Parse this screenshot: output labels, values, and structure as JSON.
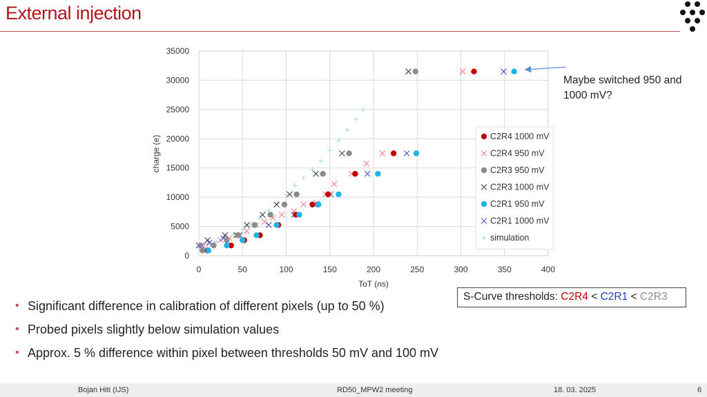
{
  "slide": {
    "title": "External injection",
    "annotation": "Maybe switched 950 and 1000 mV?",
    "scurve": {
      "prefix": "S-Curve thresholds: ",
      "c2r4": "C2R4",
      "lt1": " < ",
      "c2r1": "C2R1",
      "lt2": " < ",
      "c2r3": "C2R3"
    },
    "bullets": [
      "Significant difference in calibration of different pixels (up to 50 %)",
      "Probed pixels slightly below simulation values",
      "Approx. 5 % difference within pixel between thresholds 50 mV and 100 mV"
    ],
    "footer": {
      "author": "Bojan Hiti (IJS)",
      "meeting": "RD50_MPW2 meeting",
      "date": "18. 03. 2025",
      "page": "6"
    }
  },
  "colors": {
    "title": "#b3141b",
    "c2r4_1000": "#c00000",
    "c2r4_950": "#f08080",
    "c2r3_950": "#8c8c8c",
    "c2r3_1000": "#404040",
    "c2r1_950": "#1eb4e6",
    "c2r1_1000": "#5050c8",
    "simulation": "#9ed8ea"
  },
  "chart_data": {
    "type": "scatter",
    "xlabel": "ToT (ns)",
    "ylabel": "charge (e)",
    "xlim": [
      0,
      400
    ],
    "ylim": [
      0,
      35000
    ],
    "xticks": [
      0,
      50,
      100,
      150,
      200,
      250,
      300,
      350,
      400
    ],
    "yticks": [
      0,
      5000,
      10000,
      15000,
      20000,
      25000,
      30000,
      35000
    ],
    "grid": true,
    "legend_position": "right",
    "series": [
      {
        "name": "C2R4 1000 mV",
        "marker": "dot",
        "color": "#c00000",
        "points": [
          [
            10,
            900
          ],
          [
            37,
            1750
          ],
          [
            52,
            2650
          ],
          [
            70,
            3500
          ],
          [
            91,
            5250
          ],
          [
            111,
            7000
          ],
          [
            130,
            8750
          ],
          [
            148,
            10500
          ],
          [
            179,
            14000
          ],
          [
            223,
            17500
          ],
          [
            315,
            31500
          ]
        ]
      },
      {
        "name": "C2R4 950 mV",
        "marker": "x",
        "color": "#f08080",
        "points": [
          [
            5,
            1750
          ],
          [
            15,
            2000
          ],
          [
            25,
            2650
          ],
          [
            35,
            3000
          ],
          [
            45,
            3500
          ],
          [
            55,
            4200
          ],
          [
            65,
            5250
          ],
          [
            75,
            5800
          ],
          [
            85,
            6500
          ],
          [
            95,
            7000
          ],
          [
            109,
            7600
          ],
          [
            120,
            8750
          ],
          [
            135,
            9000
          ],
          [
            145,
            10500
          ],
          [
            155,
            12250
          ],
          [
            175,
            14000
          ],
          [
            192,
            15750
          ],
          [
            210,
            17500
          ],
          [
            302,
            31500
          ]
        ]
      },
      {
        "name": "C2R3 950 mV",
        "marker": "dot",
        "color": "#8c8c8c",
        "points": [
          [
            4,
            900
          ],
          [
            17,
            1750
          ],
          [
            32,
            2650
          ],
          [
            45,
            3500
          ],
          [
            64,
            5250
          ],
          [
            82,
            7000
          ],
          [
            98,
            8750
          ],
          [
            112,
            10500
          ],
          [
            142,
            14000
          ],
          [
            172,
            17500
          ],
          [
            248,
            31500
          ]
        ]
      },
      {
        "name": "C2R3 1000 mV",
        "marker": "x",
        "color": "#404040",
        "points": [
          [
            0,
            1750
          ],
          [
            10,
            2650
          ],
          [
            30,
            3500
          ],
          [
            43,
            3500
          ],
          [
            55,
            5250
          ],
          [
            73,
            7000
          ],
          [
            89,
            8750
          ],
          [
            104,
            10500
          ],
          [
            134,
            14000
          ],
          [
            164,
            17500
          ],
          [
            240,
            31500
          ]
        ]
      },
      {
        "name": "C2R1 950 mV",
        "marker": "dot",
        "color": "#1eb4e6",
        "points": [
          [
            11,
            900
          ],
          [
            32,
            1750
          ],
          [
            50,
            2650
          ],
          [
            66,
            3500
          ],
          [
            89,
            5250
          ],
          [
            115,
            7000
          ],
          [
            137,
            8750
          ],
          [
            160,
            10500
          ],
          [
            205,
            14000
          ],
          [
            249,
            17500
          ],
          [
            361,
            31500
          ]
        ]
      },
      {
        "name": "C2R1 1000 mV",
        "marker": "x",
        "color": "#5050c8",
        "points": [
          [
            3,
            1750
          ],
          [
            12,
            2200
          ],
          [
            28,
            3000
          ],
          [
            47,
            3500
          ],
          [
            80,
            5250
          ],
          [
            109,
            7000
          ],
          [
            132,
            8750
          ],
          [
            151,
            10500
          ],
          [
            193,
            14000
          ],
          [
            238,
            17500
          ],
          [
            349,
            31500
          ]
        ]
      },
      {
        "name": "simulation",
        "marker": "plus",
        "color": "#9ed8ea",
        "points": [
          [
            0,
            1500
          ],
          [
            10,
            1900
          ],
          [
            20,
            2400
          ],
          [
            30,
            3000
          ],
          [
            40,
            3600
          ],
          [
            50,
            4500
          ],
          [
            60,
            5400
          ],
          [
            70,
            6500
          ],
          [
            80,
            7700
          ],
          [
            90,
            9000
          ],
          [
            100,
            10400
          ],
          [
            110,
            12000
          ],
          [
            120,
            13300
          ],
          [
            130,
            14700
          ],
          [
            140,
            16200
          ],
          [
            150,
            18000
          ],
          [
            160,
            19700
          ],
          [
            170,
            21500
          ],
          [
            180,
            23300
          ],
          [
            188,
            25000
          ]
        ]
      }
    ]
  }
}
